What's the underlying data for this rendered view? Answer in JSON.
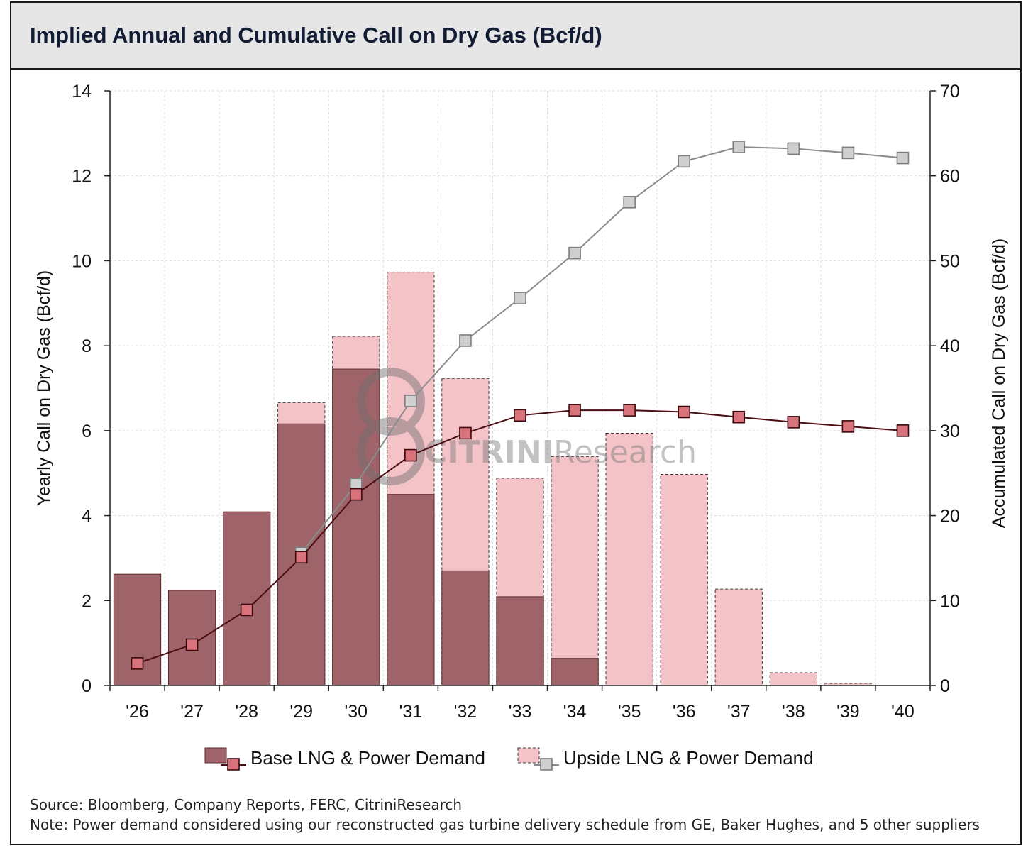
{
  "title": "Implied Annual and Cumulative Call on Dry Gas (Bcf/d)",
  "watermark": {
    "brand": "CITRINI",
    "suffix": "Research"
  },
  "footer": {
    "source": "Source: Bloomberg, Company Reports, FERC, CitriniResearch",
    "note": "Note: Power demand considered using our reconstructed gas turbine delivery schedule from GE, Baker Hughes, and 5 other suppliers"
  },
  "colors": {
    "base_bar": "#9e6469",
    "upside_bar": "#f3c3c8",
    "base_line": "#4a0d12",
    "base_marker": "#d9737b",
    "upside_line": "#8c8c8c",
    "upside_marker": "#cfcfcf"
  },
  "chart_data": {
    "type": "bar",
    "categories": [
      "'26",
      "'27",
      "'28",
      "'29",
      "'30",
      "'31",
      "'32",
      "'33",
      "'34",
      "'35",
      "'36",
      "'37",
      "'38",
      "'39",
      "'40"
    ],
    "ylabel": "Yearly Call on Dry Gas (Bcf/d)",
    "y2label": "Accumulated Call on Dry Gas (Bcf/d)",
    "ylim": [
      0,
      14
    ],
    "y2lim": [
      0,
      70
    ],
    "yticks": [
      "0",
      "2",
      "4",
      "6",
      "8",
      "10",
      "12",
      "14"
    ],
    "y2ticks": [
      "0",
      "10",
      "20",
      "30",
      "40",
      "50",
      "60",
      "70"
    ],
    "grid": true,
    "legend_position": "bottom",
    "series": [
      {
        "name": "Base LNG & Power Demand",
        "type": "bar",
        "axis": "left",
        "values": [
          2.62,
          2.24,
          4.09,
          6.16,
          7.45,
          4.5,
          2.7,
          2.09,
          0.64,
          0,
          0,
          0,
          0,
          0,
          0
        ]
      },
      {
        "name": "Upside LNG & Power Demand",
        "type": "bar",
        "axis": "left",
        "values": [
          2.62,
          2.24,
          4.09,
          6.66,
          8.22,
          9.73,
          7.23,
          4.88,
          5.39,
          5.94,
          4.97,
          2.27,
          0.3,
          0.05,
          0
        ]
      },
      {
        "name": "Base LNG & Power Demand",
        "type": "line",
        "axis": "right",
        "values": [
          2.6,
          4.8,
          8.9,
          15.1,
          22.5,
          27.1,
          29.7,
          31.8,
          32.4,
          32.4,
          32.2,
          31.6,
          31.0,
          30.5,
          30.0
        ]
      },
      {
        "name": "Upside LNG & Power Demand",
        "type": "line",
        "axis": "right",
        "values": [
          null,
          null,
          null,
          15.6,
          23.7,
          33.5,
          40.6,
          45.6,
          50.9,
          56.9,
          61.7,
          63.4,
          63.2,
          62.7,
          62.1
        ]
      }
    ]
  }
}
